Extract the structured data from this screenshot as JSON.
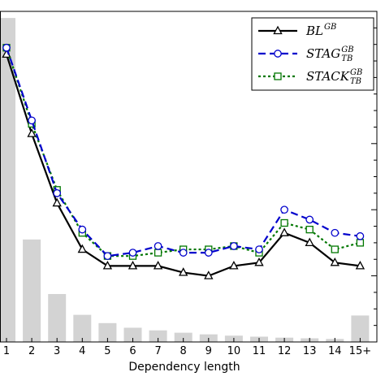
{
  "chart_data": {
    "type": "line",
    "xlabel": "Dependency length",
    "categories": [
      "1",
      "2",
      "3",
      "4",
      "5",
      "6",
      "7",
      "8",
      "9",
      "10",
      "11",
      "12",
      "13",
      "14",
      "15+"
    ],
    "ylim": [
      0.0,
      1.0
    ],
    "grid": false,
    "legend_position": "top-right",
    "series": [
      {
        "name": "BL^{GB}",
        "legend_main": "BL",
        "legend_sup": "GB",
        "legend_sub": "",
        "color": "#000000",
        "dash": "",
        "marker": "triangle",
        "values": [
          0.87,
          0.63,
          0.42,
          0.28,
          0.23,
          0.23,
          0.23,
          0.21,
          0.2,
          0.23,
          0.24,
          0.33,
          0.3,
          0.24,
          0.23
        ]
      },
      {
        "name": "STAG^{GB}_{TB}",
        "legend_main": "STAG",
        "legend_sup": "GB",
        "legend_sub": "TB",
        "color": "#0000cc",
        "dash": "9,5",
        "marker": "circle",
        "values": [
          0.89,
          0.67,
          0.45,
          0.34,
          0.26,
          0.27,
          0.29,
          0.27,
          0.27,
          0.29,
          0.28,
          0.4,
          0.37,
          0.33,
          0.32
        ]
      },
      {
        "name": "STACK^{GB}_{TB}",
        "legend_main": "STACK",
        "legend_sup": "GB",
        "legend_sub": "TB",
        "color": "#007700",
        "dash": "3,3",
        "marker": "square",
        "values": [
          0.89,
          0.66,
          0.46,
          0.33,
          0.26,
          0.26,
          0.27,
          0.28,
          0.28,
          0.29,
          0.27,
          0.36,
          0.34,
          0.28,
          0.3
        ]
      }
    ],
    "bars": {
      "color": "#d3d3d3",
      "values": [
        0.98,
        0.31,
        0.145,
        0.082,
        0.057,
        0.043,
        0.035,
        0.028,
        0.023,
        0.019,
        0.016,
        0.013,
        0.011,
        0.009,
        0.08
      ]
    }
  }
}
